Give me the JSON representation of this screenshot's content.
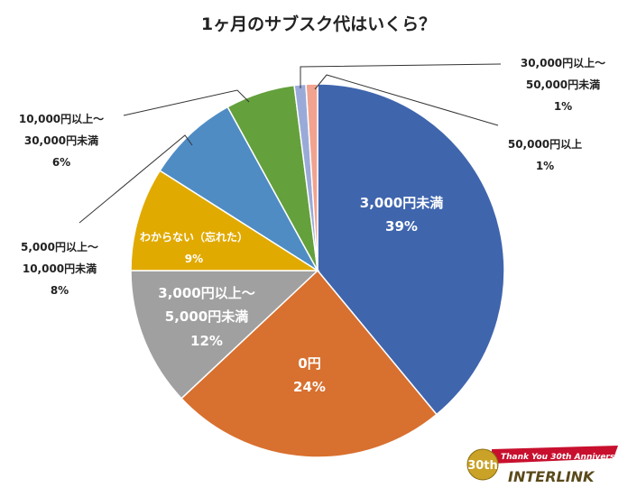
{
  "chart_data": {
    "type": "pie",
    "title": "1ヶ月のサブスク代はいくら？",
    "slices": [
      {
        "label": "3,000円未満",
        "value": 39,
        "pct_label": "39%",
        "color": "#3F65AD"
      },
      {
        "label": "0円",
        "value": 24,
        "pct_label": "24%",
        "color": "#D8702F"
      },
      {
        "label": "3,000円以上～ 5,000円未満",
        "line1": "3,000円以上～",
        "line2": "5,000円未満",
        "value": 12,
        "pct_label": "12%",
        "color": "#A0A0A0"
      },
      {
        "label": "わからない（忘れた）",
        "value": 9,
        "pct_label": "9%",
        "color": "#E1AA00"
      },
      {
        "label": "5,000円以上～ 10,000円未満",
        "line1": "5,000円以上～",
        "line2": "10,000円未満",
        "value": 8,
        "pct_label": "8%",
        "color": "#4F8CC4"
      },
      {
        "label": "10,000円以上～ 30,000円未満",
        "line1": "10,000円以上～",
        "line2": "30,000円未満",
        "value": 6,
        "pct_label": "6%",
        "color": "#64A03C"
      },
      {
        "label": "30,000円以上～ 50,000円未満",
        "line1": "30,000円以上～",
        "line2": "50,000円未満",
        "value": 1,
        "pct_label": "1%",
        "color": "#9AAAD8"
      },
      {
        "label": "50,000円以上",
        "value": 1,
        "pct_label": "1%",
        "color": "#F1A38F"
      }
    ],
    "start": "top",
    "direction": "clockwise"
  },
  "logo": {
    "text": "Thank You 30th Anniversary",
    "brand": "INTERLINK",
    "badge": "30th"
  }
}
